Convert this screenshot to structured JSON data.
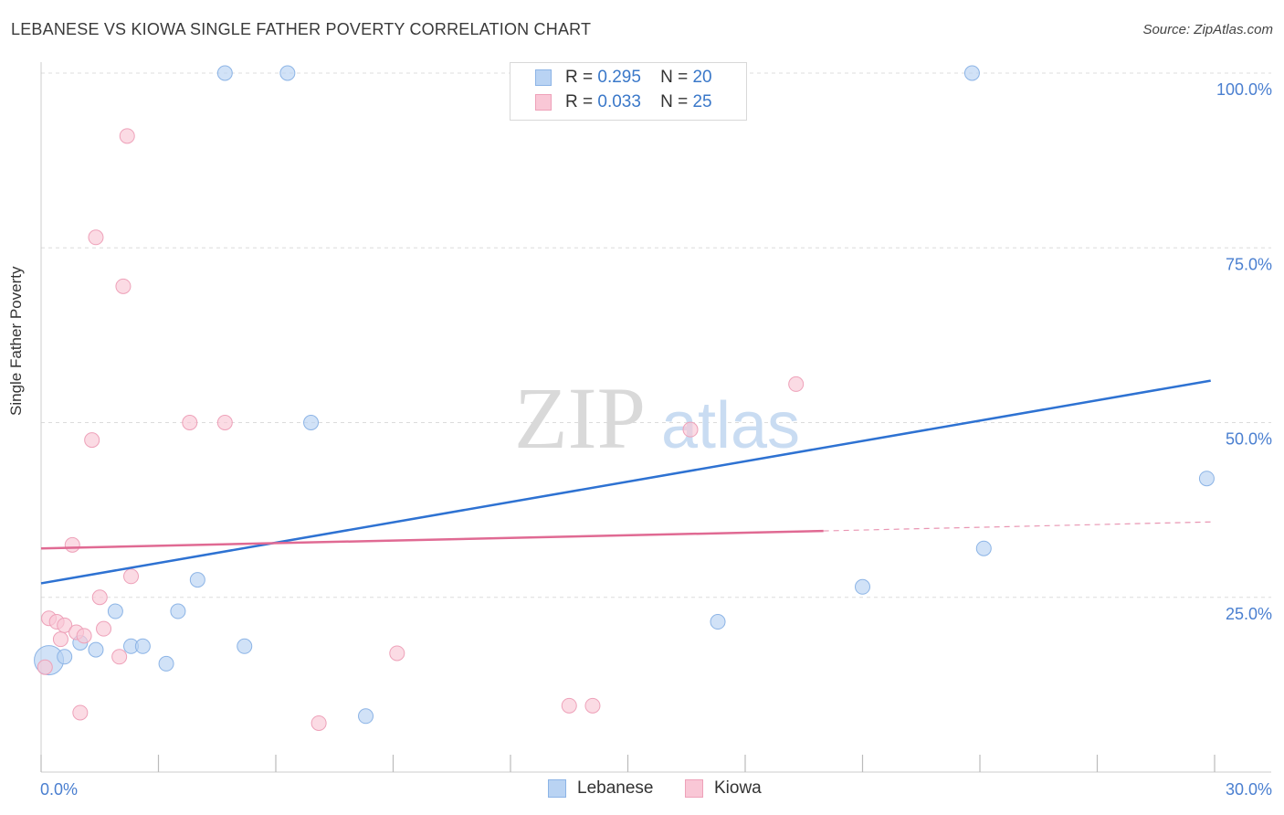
{
  "title": "LEBANESE VS KIOWA SINGLE FATHER POVERTY CORRELATION CHART",
  "source": "Source: ZipAtlas.com",
  "watermark": {
    "zip": "ZIP",
    "atlas": "atlas"
  },
  "colors": {
    "lebanese_fill": "#b9d3f3",
    "lebanese_stroke": "#8cb4e6",
    "lebanese_line": "#2e72d2",
    "kiowa_fill": "#f9c7d6",
    "kiowa_stroke": "#eea1b9",
    "kiowa_line": "#e06a93",
    "tick_label": "#4a7fd0",
    "value_text": "#3a78c9"
  },
  "legend": {
    "rows": [
      {
        "r_label": "R =",
        "r_value": "0.295",
        "n_label": "N =",
        "n_value": "20"
      },
      {
        "r_label": "R =",
        "r_value": "0.033",
        "n_label": "N =",
        "n_value": "25"
      }
    ]
  },
  "bottom_legend": [
    "Lebanese",
    "Kiowa"
  ],
  "chart_data": {
    "type": "scatter",
    "title": "LEBANESE VS KIOWA SINGLE FATHER POVERTY CORRELATION CHART",
    "xlabel": "",
    "ylabel": "Single Father Poverty",
    "xlim": [
      0,
      30
    ],
    "ylim": [
      0,
      100
    ],
    "x_tick_labels": [
      "0.0%",
      "30.0%"
    ],
    "y_ticks": [
      25,
      50,
      75,
      100
    ],
    "y_tick_labels": [
      "25.0%",
      "50.0%",
      "75.0%",
      "100.0%"
    ],
    "grid": true,
    "legend_position": "top-center",
    "series": [
      {
        "name": "Lebanese",
        "points": [
          {
            "x": 0.2,
            "y": 16.0,
            "big": true
          },
          {
            "x": 0.6,
            "y": 16.5
          },
          {
            "x": 1.0,
            "y": 18.5
          },
          {
            "x": 1.4,
            "y": 17.5
          },
          {
            "x": 1.9,
            "y": 23.0
          },
          {
            "x": 2.3,
            "y": 18.0
          },
          {
            "x": 2.6,
            "y": 18.0
          },
          {
            "x": 3.2,
            "y": 15.5
          },
          {
            "x": 3.5,
            "y": 23.0
          },
          {
            "x": 4.0,
            "y": 27.5
          },
          {
            "x": 4.7,
            "y": 100.0
          },
          {
            "x": 5.2,
            "y": 18.0
          },
          {
            "x": 6.3,
            "y": 100.0
          },
          {
            "x": 6.9,
            "y": 50.0
          },
          {
            "x": 8.3,
            "y": 8.0
          },
          {
            "x": 17.3,
            "y": 21.5
          },
          {
            "x": 21.0,
            "y": 26.5
          },
          {
            "x": 23.8,
            "y": 100.0
          },
          {
            "x": 24.1,
            "y": 32.0
          },
          {
            "x": 29.8,
            "y": 42.0
          }
        ],
        "trend": {
          "x0": 0,
          "y0": 27.0,
          "x1": 29.9,
          "y1": 56.0
        }
      },
      {
        "name": "Kiowa",
        "points": [
          {
            "x": 0.1,
            "y": 15.0
          },
          {
            "x": 0.2,
            "y": 22.0
          },
          {
            "x": 0.4,
            "y": 21.5
          },
          {
            "x": 0.5,
            "y": 19.0
          },
          {
            "x": 0.6,
            "y": 21.0
          },
          {
            "x": 0.8,
            "y": 32.5
          },
          {
            "x": 0.9,
            "y": 20.0
          },
          {
            "x": 1.0,
            "y": 8.5
          },
          {
            "x": 1.1,
            "y": 19.5
          },
          {
            "x": 1.3,
            "y": 47.5
          },
          {
            "x": 1.4,
            "y": 76.5
          },
          {
            "x": 1.5,
            "y": 25.0
          },
          {
            "x": 1.6,
            "y": 20.5
          },
          {
            "x": 2.0,
            "y": 16.5
          },
          {
            "x": 2.1,
            "y": 69.5
          },
          {
            "x": 2.2,
            "y": 91.0
          },
          {
            "x": 2.3,
            "y": 28.0
          },
          {
            "x": 3.8,
            "y": 50.0
          },
          {
            "x": 4.7,
            "y": 50.0
          },
          {
            "x": 7.1,
            "y": 7.0
          },
          {
            "x": 9.1,
            "y": 17.0
          },
          {
            "x": 13.5,
            "y": 9.5
          },
          {
            "x": 14.1,
            "y": 9.5
          },
          {
            "x": 16.6,
            "y": 49.0
          },
          {
            "x": 19.3,
            "y": 55.5
          }
        ],
        "trend": {
          "x0": 0,
          "y0": 32.0,
          "x1": 20.0,
          "y1": 34.5,
          "dashed_to_x": 30,
          "dashed_to_y": 35.8
        }
      }
    ]
  }
}
